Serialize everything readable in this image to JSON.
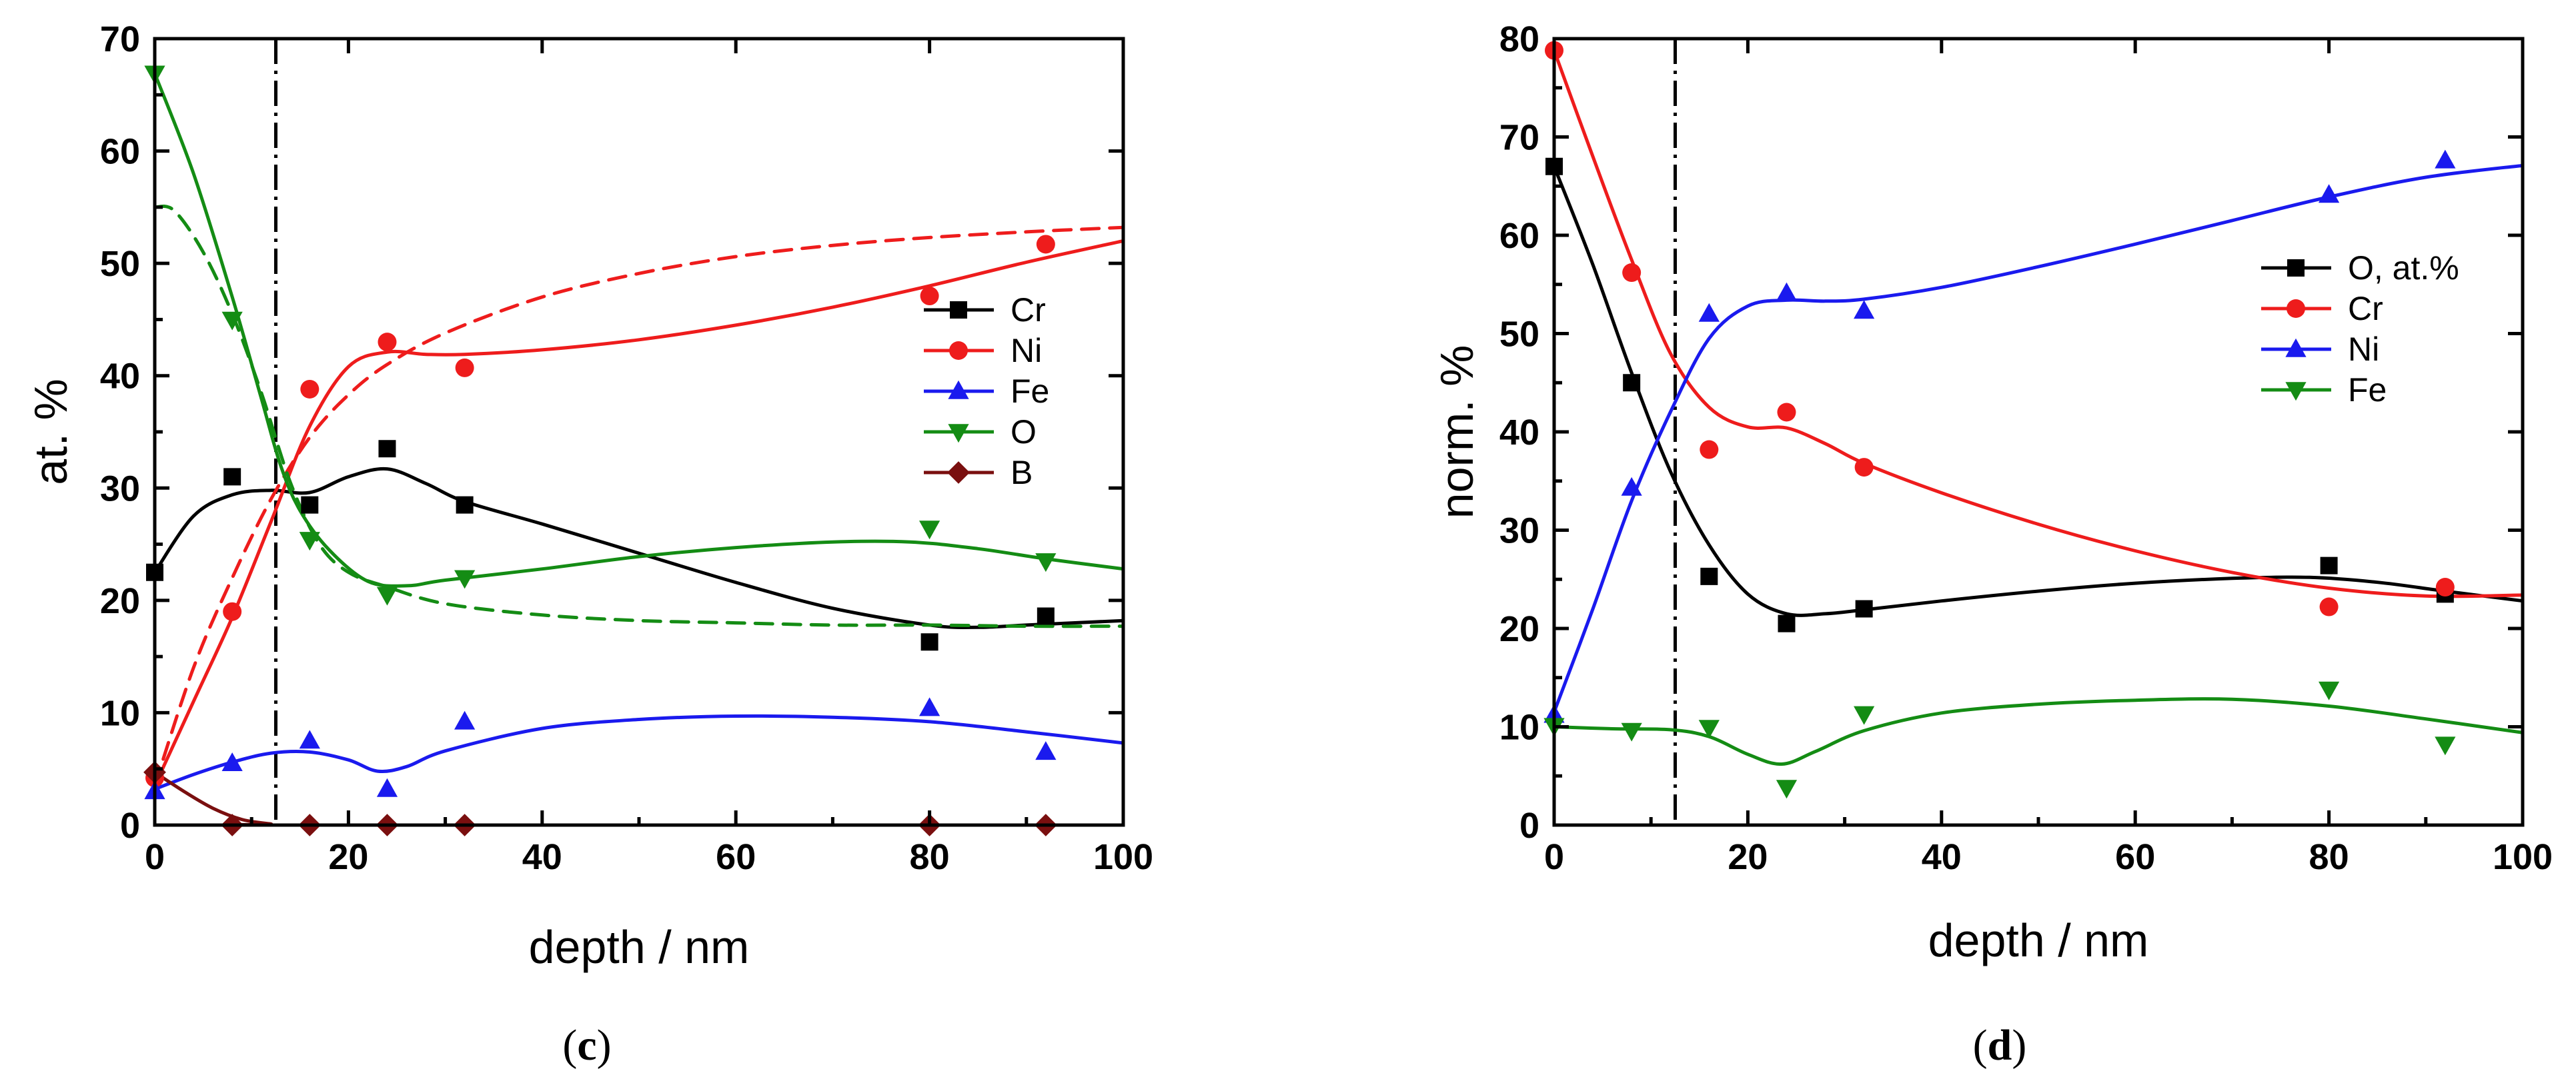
{
  "colors": {
    "black": "#000000",
    "red": "#ee1c1c",
    "blue": "#1a1aee",
    "green": "#148c14",
    "darkred": "#7a0f0f"
  },
  "chart_data": [
    {
      "id": "c",
      "panel_label": {
        "open": "(",
        "letter": "c",
        "close": ")"
      },
      "type": "line",
      "xlabel": "depth / nm",
      "ylabel": "at. %",
      "xlim": [
        0,
        100
      ],
      "ylim": [
        0,
        70
      ],
      "xticks": [
        "0",
        "20",
        "40",
        "60",
        "80",
        "100"
      ],
      "yticks": [
        "0",
        "10",
        "20",
        "30",
        "40",
        "50",
        "60",
        "70"
      ],
      "vline_x": 12.5,
      "legend": [
        {
          "label": "Cr",
          "color": "black",
          "marker": "square"
        },
        {
          "label": "Ni",
          "color": "red",
          "marker": "circle"
        },
        {
          "label": "Fe",
          "color": "blue",
          "marker": "triangle-up"
        },
        {
          "label": "O",
          "color": "green",
          "marker": "triangle-down"
        },
        {
          "label": "B",
          "color": "darkred",
          "marker": "diamond"
        }
      ],
      "series": [
        {
          "name": "Cr",
          "color": "black",
          "marker": "square",
          "points": [
            [
              0,
              22.5
            ],
            [
              8,
              31
            ],
            [
              16,
              28.5
            ],
            [
              24,
              33.5
            ],
            [
              32,
              28.5
            ],
            [
              80,
              16.3
            ],
            [
              92,
              18.6
            ]
          ],
          "fit": [
            [
              0,
              22.5
            ],
            [
              4,
              27.5
            ],
            [
              8,
              29.4
            ],
            [
              12,
              29.8
            ],
            [
              16,
              29.6
            ],
            [
              20,
              31
            ],
            [
              24,
              31.7
            ],
            [
              28,
              30.4
            ],
            [
              32,
              28.8
            ],
            [
              40,
              26.8
            ],
            [
              50,
              24.2
            ],
            [
              60,
              21.6
            ],
            [
              70,
              19.3
            ],
            [
              80,
              17.8
            ],
            [
              85,
              17.6
            ],
            [
              90,
              17.8
            ],
            [
              100,
              18.2
            ]
          ]
        },
        {
          "name": "Ni",
          "color": "red",
          "marker": "circle",
          "points": [
            [
              0,
              4.2
            ],
            [
              8,
              19
            ],
            [
              16,
              38.8
            ],
            [
              24,
              43
            ],
            [
              32,
              40.7
            ],
            [
              80,
              47.1
            ],
            [
              92,
              51.7
            ]
          ],
          "fit": [
            [
              0,
              3.5
            ],
            [
              4,
              11
            ],
            [
              8,
              18.5
            ],
            [
              12,
              27
            ],
            [
              16,
              35.5
            ],
            [
              20,
              40.8
            ],
            [
              24,
              42.1
            ],
            [
              28,
              41.9
            ],
            [
              32,
              41.9
            ],
            [
              40,
              42.3
            ],
            [
              50,
              43.2
            ],
            [
              60,
              44.5
            ],
            [
              70,
              46.1
            ],
            [
              80,
              48
            ],
            [
              90,
              50.1
            ],
            [
              100,
              52
            ]
          ]
        },
        {
          "name": "Ni (dashed)",
          "color": "red",
          "marker": "none",
          "dashed": true,
          "fit": [
            [
              0,
              3.5
            ],
            [
              4,
              14
            ],
            [
              8,
              22
            ],
            [
              12,
              29
            ],
            [
              16,
              34.5
            ],
            [
              20,
              38.3
            ],
            [
              24,
              41
            ],
            [
              30,
              43.8
            ],
            [
              40,
              47
            ],
            [
              50,
              49.1
            ],
            [
              60,
              50.6
            ],
            [
              70,
              51.6
            ],
            [
              80,
              52.3
            ],
            [
              90,
              52.8
            ],
            [
              100,
              53.2
            ]
          ]
        },
        {
          "name": "Fe",
          "color": "blue",
          "marker": "triangle-up",
          "points": [
            [
              0,
              3
            ],
            [
              8,
              5.5
            ],
            [
              16,
              7.5
            ],
            [
              24,
              3.2
            ],
            [
              32,
              9.2
            ],
            [
              80,
              10.4
            ],
            [
              92,
              6.5
            ]
          ],
          "fit": [
            [
              0,
              3.2
            ],
            [
              4,
              4.5
            ],
            [
              8,
              5.6
            ],
            [
              12,
              6.4
            ],
            [
              16,
              6.5
            ],
            [
              20,
              5.8
            ],
            [
              23,
              4.8
            ],
            [
              26,
              5.2
            ],
            [
              30,
              6.6
            ],
            [
              40,
              8.6
            ],
            [
              50,
              9.4
            ],
            [
              60,
              9.7
            ],
            [
              70,
              9.6
            ],
            [
              80,
              9.2
            ],
            [
              90,
              8.3
            ],
            [
              100,
              7.3
            ]
          ]
        },
        {
          "name": "O",
          "color": "green",
          "marker": "triangle-down",
          "points": [
            [
              0,
              66.9
            ],
            [
              8,
              45
            ],
            [
              16,
              25.4
            ],
            [
              24,
              20.5
            ],
            [
              32,
              22
            ],
            [
              80,
              26.4
            ],
            [
              92,
              23.5
            ]
          ],
          "fit": [
            [
              0,
              66.9
            ],
            [
              4,
              58
            ],
            [
              8,
              47
            ],
            [
              11,
              38
            ],
            [
              13,
              32
            ],
            [
              15,
              28
            ],
            [
              18,
              24.5
            ],
            [
              22,
              21.7
            ],
            [
              26,
              21.3
            ],
            [
              30,
              21.8
            ],
            [
              40,
              22.8
            ],
            [
              50,
              23.9
            ],
            [
              60,
              24.7
            ],
            [
              70,
              25.2
            ],
            [
              78,
              25.2
            ],
            [
              85,
              24.6
            ],
            [
              92,
              23.7
            ],
            [
              100,
              22.8
            ]
          ]
        },
        {
          "name": "O (dashed)",
          "color": "green",
          "marker": "none",
          "dashed": true,
          "fit": [
            [
              0,
              55
            ],
            [
              2,
              54.7
            ],
            [
              5,
              51
            ],
            [
              8,
              45.5
            ],
            [
              11,
              38.5
            ],
            [
              14,
              30.5
            ],
            [
              17,
              25
            ],
            [
              20,
              22.5
            ],
            [
              24,
              21.2
            ],
            [
              30,
              19.7
            ],
            [
              40,
              18.7
            ],
            [
              50,
              18.2
            ],
            [
              60,
              18
            ],
            [
              70,
              17.8
            ],
            [
              80,
              17.8
            ],
            [
              90,
              17.7
            ],
            [
              100,
              17.7
            ]
          ]
        },
        {
          "name": "B",
          "color": "darkred",
          "marker": "diamond",
          "points": [
            [
              0,
              4.7
            ],
            [
              8,
              0
            ],
            [
              16,
              0
            ],
            [
              24,
              0
            ],
            [
              32,
              0
            ],
            [
              80,
              0
            ],
            [
              92,
              0
            ]
          ],
          "fit": [
            [
              0,
              4.7
            ],
            [
              3,
              3
            ],
            [
              6,
              1.5
            ],
            [
              9,
              0.5
            ],
            [
              12,
              0.1
            ],
            [
              14,
              0
            ],
            [
              100,
              0
            ]
          ]
        }
      ]
    },
    {
      "id": "d",
      "panel_label": {
        "open": "(",
        "letter": "d",
        "close": ")"
      },
      "type": "line",
      "xlabel": "depth / nm",
      "ylabel": "norm. %",
      "xlim": [
        0,
        100
      ],
      "ylim": [
        0,
        80
      ],
      "xticks": [
        "0",
        "20",
        "40",
        "60",
        "80",
        "100"
      ],
      "yticks": [
        "0",
        "10",
        "20",
        "30",
        "40",
        "50",
        "60",
        "70",
        "80"
      ],
      "vline_x": 12.5,
      "legend": [
        {
          "label": "O, at.%",
          "color": "black",
          "marker": "square"
        },
        {
          "label": "Cr",
          "color": "red",
          "marker": "circle"
        },
        {
          "label": "Ni",
          "color": "blue",
          "marker": "triangle-up"
        },
        {
          "label": "Fe",
          "color": "green",
          "marker": "triangle-down"
        }
      ],
      "series": [
        {
          "name": "O, at.%",
          "color": "black",
          "marker": "square",
          "points": [
            [
              0,
              67
            ],
            [
              8,
              45
            ],
            [
              16,
              25.3
            ],
            [
              24,
              20.5
            ],
            [
              32,
              22
            ],
            [
              80,
              26.4
            ],
            [
              92,
              23.5
            ]
          ],
          "fit": [
            [
              0,
              67
            ],
            [
              4,
              57
            ],
            [
              8,
              46
            ],
            [
              12,
              36
            ],
            [
              16,
              28.5
            ],
            [
              20,
              23.5
            ],
            [
              24,
              21.5
            ],
            [
              28,
              21.5
            ],
            [
              32,
              21.9
            ],
            [
              40,
              22.8
            ],
            [
              50,
              23.8
            ],
            [
              60,
              24.6
            ],
            [
              70,
              25.1
            ],
            [
              78,
              25.2
            ],
            [
              85,
              24.7
            ],
            [
              92,
              23.8
            ],
            [
              100,
              22.8
            ]
          ]
        },
        {
          "name": "Cr",
          "color": "red",
          "marker": "circle",
          "points": [
            [
              0,
              78.8
            ],
            [
              8,
              56.2
            ],
            [
              16,
              38.2
            ],
            [
              24,
              42
            ],
            [
              32,
              36.4
            ],
            [
              80,
              22.2
            ],
            [
              92,
              24.2
            ]
          ],
          "fit": [
            [
              0,
              78.8
            ],
            [
              4,
              68
            ],
            [
              8,
              57.5
            ],
            [
              12,
              48
            ],
            [
              16,
              42.5
            ],
            [
              20,
              40.5
            ],
            [
              24,
              40.4
            ],
            [
              28,
              38.8
            ],
            [
              32,
              36.8
            ],
            [
              40,
              33.8
            ],
            [
              50,
              30.6
            ],
            [
              60,
              27.9
            ],
            [
              70,
              25.7
            ],
            [
              80,
              24.1
            ],
            [
              90,
              23.3
            ],
            [
              100,
              23.4
            ]
          ]
        },
        {
          "name": "Ni",
          "color": "blue",
          "marker": "triangle-up",
          "points": [
            [
              0,
              11.2
            ],
            [
              8,
              34.3
            ],
            [
              16,
              52
            ],
            [
              24,
              54.1
            ],
            [
              32,
              52.3
            ],
            [
              80,
              64.1
            ],
            [
              92,
              67.6
            ]
          ],
          "fit": [
            [
              0,
              11.5
            ],
            [
              4,
              22
            ],
            [
              8,
              33
            ],
            [
              12,
              42
            ],
            [
              16,
              49.5
            ],
            [
              20,
              52.8
            ],
            [
              24,
              53.4
            ],
            [
              28,
              53.3
            ],
            [
              32,
              53.5
            ],
            [
              40,
              54.7
            ],
            [
              50,
              56.8
            ],
            [
              60,
              59.1
            ],
            [
              70,
              61.5
            ],
            [
              80,
              63.9
            ],
            [
              90,
              65.9
            ],
            [
              100,
              67.1
            ]
          ]
        },
        {
          "name": "Fe",
          "color": "green",
          "marker": "triangle-down",
          "points": [
            [
              0,
              10.1
            ],
            [
              8,
              9.6
            ],
            [
              16,
              9.9
            ],
            [
              24,
              3.8
            ],
            [
              32,
              11.3
            ],
            [
              80,
              13.8
            ],
            [
              92,
              8.2
            ]
          ],
          "fit": [
            [
              0,
              10
            ],
            [
              6,
              9.8
            ],
            [
              12,
              9.7
            ],
            [
              16,
              9
            ],
            [
              20,
              7.2
            ],
            [
              23.5,
              6.2
            ],
            [
              27,
              7.5
            ],
            [
              32,
              9.6
            ],
            [
              40,
              11.4
            ],
            [
              50,
              12.3
            ],
            [
              60,
              12.7
            ],
            [
              70,
              12.8
            ],
            [
              80,
              12.1
            ],
            [
              90,
              10.8
            ],
            [
              100,
              9.4
            ]
          ]
        }
      ]
    }
  ]
}
